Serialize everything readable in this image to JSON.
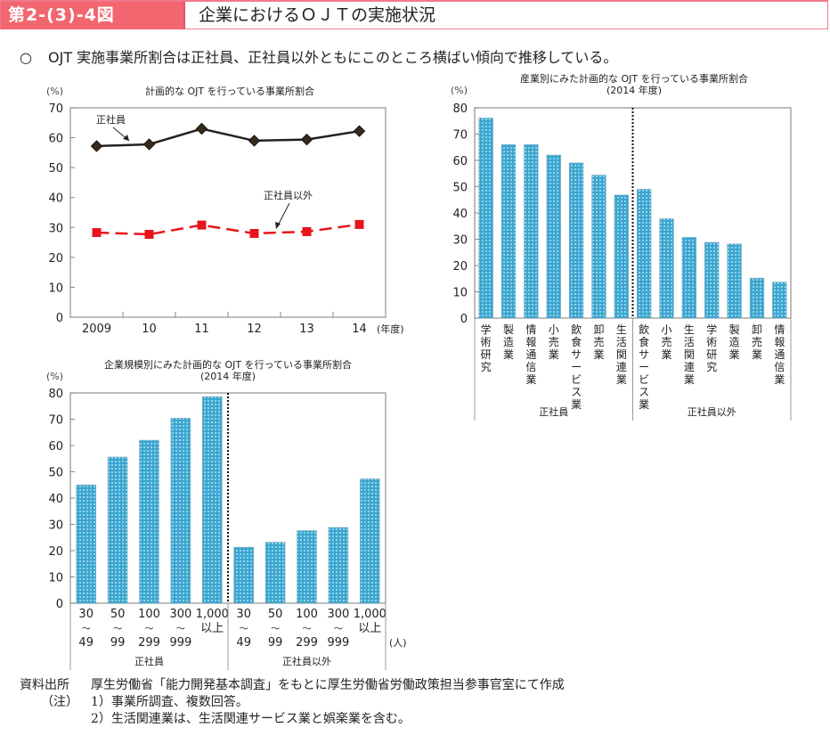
{
  "header": {
    "figure_number": "第2-(3)-4図",
    "title": "企業におけるＯＪＴの実施状況"
  },
  "summary": {
    "bullet": "○",
    "text": "OJT 実施事業所割合は正社員、正社員以外ともにこのところ横ばい傾向で推移している。"
  },
  "colors": {
    "header_bg": "#f26670",
    "bar_fill": "#3aa6d0",
    "line_regular": "#222222",
    "line_nonregular": "#e8141c"
  },
  "chart_data": [
    {
      "type": "line",
      "title": "計画的な OJT を行っている事業所割合",
      "ylabel": "(%)",
      "xlabel": "(年度)",
      "x": [
        "2009",
        "10",
        "11",
        "12",
        "13",
        "14"
      ],
      "ylim": [
        0,
        70
      ],
      "yticks": [
        0,
        10,
        20,
        30,
        40,
        50,
        60,
        70
      ],
      "grid": false,
      "series": [
        {
          "name": "正社員",
          "marker": "diamond",
          "style": "solid",
          "values": [
            57.2,
            57.8,
            63.0,
            59.0,
            59.4,
            62.2
          ]
        },
        {
          "name": "正社員以外",
          "marker": "square",
          "style": "dashed",
          "values": [
            28.3,
            27.7,
            30.8,
            28.0,
            28.6,
            31.0
          ]
        }
      ],
      "annotations": [
        "正社員",
        "正社員以外"
      ]
    },
    {
      "type": "bar",
      "title": "産業別にみた計画的な OJT を行っている事業所割合",
      "subtitle": "(2014 年度)",
      "ylabel": "(%)",
      "ylim": [
        0,
        80
      ],
      "yticks": [
        0,
        10,
        20,
        30,
        40,
        50,
        60,
        70,
        80
      ],
      "grid": false,
      "groups": [
        {
          "name": "正社員",
          "categories": [
            "学術研究",
            "製造業",
            "情報通信業",
            "小売業",
            "飲食サービス業",
            "卸売業",
            "生活関連業"
          ],
          "values": [
            76.1,
            66.0,
            66.0,
            62.0,
            59.0,
            54.4,
            46.8
          ]
        },
        {
          "name": "正社員以外",
          "categories": [
            "飲食サービス業",
            "小売業",
            "生活関連業",
            "学術研究",
            "製造業",
            "卸売業",
            "情報通信業"
          ],
          "values": [
            49.0,
            37.8,
            30.7,
            28.8,
            28.2,
            15.2,
            13.7
          ]
        }
      ]
    },
    {
      "type": "bar",
      "title": "企業規模別にみた計画的な OJT を行っている事業所割合",
      "subtitle": "(2014 年度)",
      "ylabel": "(%)",
      "xlabel": "(人)",
      "ylim": [
        0,
        80
      ],
      "yticks": [
        0,
        10,
        20,
        30,
        40,
        50,
        60,
        70,
        80
      ],
      "grid": false,
      "groups": [
        {
          "name": "正社員",
          "categories": [
            [
              "30",
              "〜",
              "49"
            ],
            [
              "50",
              "〜",
              "99"
            ],
            [
              "100",
              "〜",
              "299"
            ],
            [
              "300",
              "〜",
              "999"
            ],
            [
              "1,000",
              "以上",
              ""
            ]
          ],
          "values": [
            45.0,
            55.6,
            62.0,
            70.4,
            78.6
          ]
        },
        {
          "name": "正社員以外",
          "categories": [
            [
              "30",
              "〜",
              "49"
            ],
            [
              "50",
              "〜",
              "99"
            ],
            [
              "100",
              "〜",
              "299"
            ],
            [
              "300",
              "〜",
              "999"
            ],
            [
              "1,000",
              "以上",
              ""
            ]
          ],
          "values": [
            21.3,
            23.2,
            27.6,
            28.8,
            47.3
          ]
        }
      ]
    }
  ],
  "notes": {
    "source_label": "資料出所",
    "source_text": "厚生労働省「能力開発基本調査」をもとに厚生労働省労働政策担当参事官室にて作成",
    "note_label": "（注）",
    "items": [
      "1）事業所調査、複数回答。",
      "2）生活関連業は、生活関連サービス業と娯楽業を含む。"
    ]
  }
}
